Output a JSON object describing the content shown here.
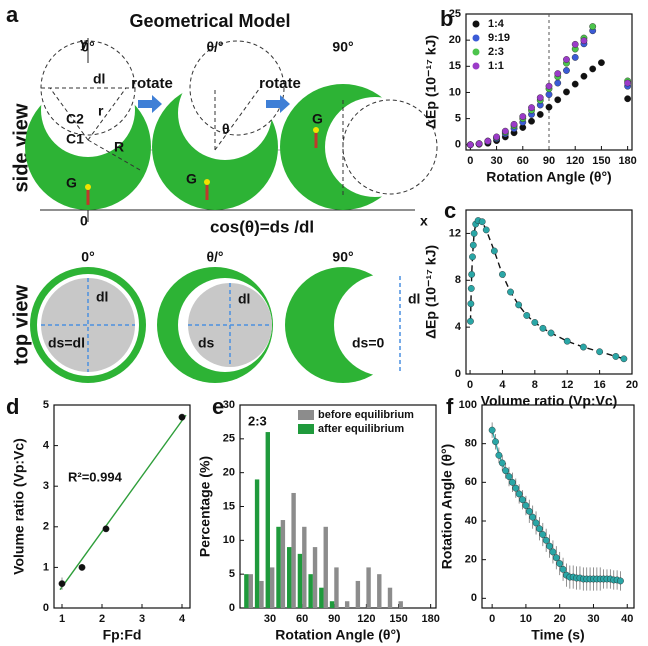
{
  "diagram": {
    "panel": "a",
    "title": "Geometrical Model",
    "side_label": "side view",
    "top_label": "top view",
    "angles": [
      "0°",
      "θ/°",
      "90°"
    ],
    "arrows": [
      "rotate",
      "rotate"
    ],
    "labels": {
      "dl": "dl",
      "r": "r",
      "R": "R",
      "c2": "C2",
      "c1": "C1",
      "g": "G",
      "theta": "θ",
      "x": "x",
      "y": "y",
      "origin": "0"
    },
    "equation": "cos(θ)=ds /dl",
    "top_labels": {
      "dl": "dl",
      "ds_eq_dl": "ds=dl",
      "ds": "ds",
      "ds_zero": "ds=0"
    }
  },
  "chart_data": [
    {
      "type": "scatter",
      "panel": "b",
      "xlabel": "Rotation Angle (θ°)",
      "ylabel": "ΔEp (10⁻¹⁷ kJ)",
      "xlim": [
        -5,
        185
      ],
      "ylim": [
        -1,
        25
      ],
      "xticks": [
        0,
        30,
        60,
        90,
        120,
        150,
        180
      ],
      "yticks": [
        0,
        5,
        10,
        15,
        20,
        25
      ],
      "vlines": [
        90
      ],
      "legend": "upper left",
      "series": [
        {
          "name": "1:4",
          "color": "#111111",
          "x": [
            0,
            10,
            20,
            30,
            40,
            50,
            60,
            70,
            80,
            90,
            100,
            110,
            120,
            130,
            140,
            150,
            180
          ],
          "values": [
            0,
            0.1,
            0.3,
            0.8,
            1.5,
            2.3,
            3.3,
            4.5,
            5.8,
            7.2,
            8.6,
            10.1,
            11.6,
            13.1,
            14.5,
            15.7,
            8.8
          ]
        },
        {
          "name": "9:19",
          "color": "#3b5bd6",
          "x": [
            0,
            10,
            20,
            30,
            40,
            50,
            60,
            70,
            80,
            90,
            100,
            110,
            120,
            130,
            140,
            180
          ],
          "values": [
            0,
            0.2,
            0.6,
            1.2,
            2.1,
            3.1,
            4.3,
            5.8,
            7.6,
            9.6,
            11.8,
            14.2,
            16.7,
            19.3,
            21.8,
            11.2
          ]
        },
        {
          "name": "2:3",
          "color": "#4cc44c",
          "x": [
            0,
            10,
            20,
            30,
            40,
            50,
            60,
            70,
            80,
            90,
            100,
            110,
            120,
            130,
            140,
            180
          ],
          "values": [
            0,
            0.2,
            0.7,
            1.4,
            2.4,
            3.6,
            5,
            6.6,
            8.5,
            10.7,
            13,
            15.6,
            18.3,
            20.4,
            22.6,
            12.2
          ]
        },
        {
          "name": "1:1",
          "color": "#9b3bc8",
          "x": [
            0,
            10,
            20,
            30,
            40,
            50,
            60,
            70,
            80,
            90,
            100,
            110,
            120,
            130,
            180
          ],
          "values": [
            0,
            0.2,
            0.7,
            1.5,
            2.6,
            3.9,
            5.4,
            7.1,
            9,
            11.2,
            13.6,
            16.3,
            19.2,
            19.9,
            11.8
          ]
        }
      ]
    },
    {
      "type": "scatter",
      "panel": "c",
      "xlabel": "Volume ratio (Vp:Vc)",
      "ylabel": "ΔEp (10⁻¹⁷ kJ)",
      "xlim": [
        -0.5,
        20
      ],
      "ylim": [
        0,
        14
      ],
      "xticks": [
        0,
        4,
        8,
        12,
        16,
        20
      ],
      "yticks": [
        0,
        4,
        8,
        12
      ],
      "series": [
        {
          "color": "#2aa6a6",
          "line": "dashed",
          "x": [
            0.05,
            0.1,
            0.15,
            0.2,
            0.3,
            0.4,
            0.5,
            0.7,
            1,
            1.5,
            2,
            3,
            4,
            5,
            6,
            7,
            8,
            9,
            10,
            12,
            14,
            16,
            18,
            19
          ],
          "values": [
            4.5,
            6,
            7.3,
            8.5,
            10,
            11,
            12,
            12.8,
            13.1,
            13,
            12.3,
            10.5,
            8.5,
            7,
            5.9,
            5,
            4.4,
            3.9,
            3.5,
            2.8,
            2.3,
            1.9,
            1.5,
            1.3
          ]
        }
      ]
    },
    {
      "type": "scatter",
      "panel": "d",
      "xlabel": "Fp:Fd",
      "ylabel": "Volume ratio (Vp:Vc)",
      "annotation": "R²=0.994",
      "xlim": [
        0.8,
        4.2
      ],
      "ylim": [
        0,
        5
      ],
      "xticks": [
        1,
        2,
        3,
        4
      ],
      "yticks": [
        0,
        1,
        2,
        3,
        4,
        5
      ],
      "series": [
        {
          "color": "#2e9e3a",
          "line": "solid",
          "marker": false,
          "x": [
            0.95,
            4.1
          ],
          "values": [
            0.45,
            4.75
          ]
        },
        {
          "color": "#111111",
          "x": [
            1,
            1.5,
            2.1,
            4
          ],
          "values": [
            0.6,
            1,
            1.95,
            4.7
          ],
          "errors": [
            0.15,
            0.05,
            0.05,
            0.05
          ]
        }
      ]
    },
    {
      "type": "bar",
      "panel": "e",
      "xlabel": "Rotation Angle (θ°)",
      "ylabel": "Percentage (%)",
      "annotation": "2:3",
      "xlim": [
        2,
        185
      ],
      "ylim": [
        0,
        30
      ],
      "xticks": [
        30,
        60,
        90,
        120,
        150,
        180
      ],
      "yticks": [
        0,
        5,
        10,
        15,
        20,
        25,
        30
      ],
      "legend": "upper right",
      "series": [
        {
          "name": "before equilibrium",
          "color": "#8c8c8c",
          "x": [
            10,
            20,
            30,
            40,
            50,
            60,
            70,
            80,
            90,
            100,
            110,
            120,
            130,
            140,
            150
          ],
          "values": [
            5,
            4,
            6,
            13,
            17,
            12,
            9,
            12,
            6,
            1,
            4,
            6,
            5,
            3,
            1
          ]
        },
        {
          "name": "after equilibrium",
          "color": "#1f9a3c",
          "x": [
            10,
            20,
            30,
            40,
            50,
            60,
            70,
            80,
            90,
            100,
            110,
            120,
            130,
            140,
            150
          ],
          "values": [
            5,
            19,
            26,
            12,
            9,
            8,
            5,
            3,
            1,
            0,
            0,
            0,
            0,
            0,
            0
          ]
        }
      ]
    },
    {
      "type": "scatter",
      "panel": "f",
      "xlabel": "Time (s)",
      "ylabel": "Rotation Angle (θ°)",
      "xlim": [
        -3,
        42
      ],
      "ylim": [
        -5,
        100
      ],
      "xticks": [
        0,
        10,
        20,
        30,
        40
      ],
      "yticks": [
        0,
        20,
        40,
        60,
        80,
        100
      ],
      "series": [
        {
          "color": "#2aa6a6",
          "line": "solid",
          "x": [
            0,
            1,
            2,
            3,
            4,
            5,
            6,
            7,
            8,
            9,
            10,
            11,
            12,
            13,
            14,
            15,
            16,
            17,
            18,
            19,
            20,
            21,
            22,
            23,
            24,
            25,
            26,
            27,
            28,
            29,
            30,
            31,
            32,
            33,
            34,
            35,
            36,
            37,
            38
          ],
          "values": [
            87,
            81,
            74,
            70,
            66,
            63,
            60,
            57,
            54,
            51,
            48,
            45,
            42,
            39,
            36,
            33,
            30,
            27,
            24,
            21,
            18,
            15,
            12,
            11,
            11,
            10.5,
            10.5,
            10,
            10,
            10,
            10,
            10,
            10,
            10,
            10,
            10,
            9.5,
            9.5,
            9
          ],
          "errors": [
            4,
            4,
            4,
            4,
            4,
            5,
            5,
            5,
            5,
            5,
            5,
            6,
            6,
            6,
            6,
            6,
            6,
            6,
            6,
            6,
            6,
            6,
            6,
            6,
            6,
            6,
            6,
            6,
            6,
            6,
            6,
            6,
            6,
            5,
            5,
            5,
            5,
            5,
            5
          ]
        }
      ]
    }
  ]
}
